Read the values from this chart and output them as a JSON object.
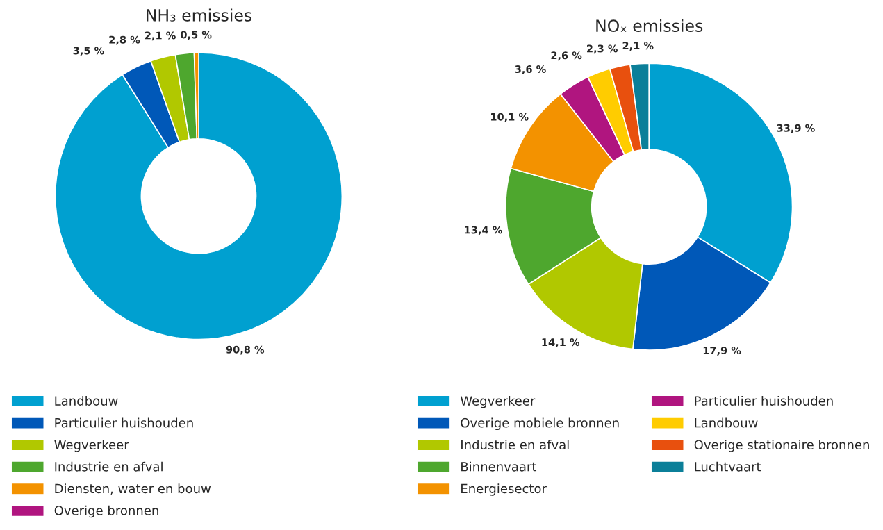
{
  "chart_data": [
    {
      "type": "donut",
      "title": "NH₃ emissies",
      "legend": "bottom",
      "categories": [
        "Landbouw",
        "Particulier huishouden",
        "Wegverkeer",
        "Industrie en afval",
        "Diensten, water en bouw",
        "Overige bronnen"
      ],
      "values": [
        90.8,
        3.5,
        2.8,
        2.1,
        0.5,
        null
      ],
      "colors": [
        "#00a0d0",
        "#0058b8",
        "#b1c800",
        "#4ea72e",
        "#f39200",
        "#b0157f"
      ],
      "value_labels": [
        "90,8 %",
        "3,5 %",
        "2,8 %",
        "2,1 %",
        "0,5 %",
        null
      ]
    },
    {
      "type": "donut",
      "title": "NOₓ emissies",
      "legend": "bottom",
      "categories": [
        "Wegverkeer",
        "Overige mobiele bronnen",
        "Industrie en afval",
        "Binnenvaart",
        "Energiesector",
        "Particulier huishouden",
        "Landbouw",
        "Overige stationaire bronnen",
        "Luchtvaart"
      ],
      "values": [
        33.9,
        17.9,
        14.1,
        13.4,
        10.1,
        3.6,
        2.6,
        2.3,
        2.1
      ],
      "colors": [
        "#00a0d0",
        "#0058b8",
        "#b1c800",
        "#4ea72e",
        "#f39200",
        "#b0157f",
        "#ffcc00",
        "#e8500e",
        "#0b7f99"
      ],
      "value_labels": [
        "33,9 %",
        "17,9 %",
        "14,1 %",
        "13,4 %",
        "10,1 %",
        "3,6 %",
        "2,6 %",
        "2,3 %",
        "2,1 %"
      ]
    }
  ]
}
